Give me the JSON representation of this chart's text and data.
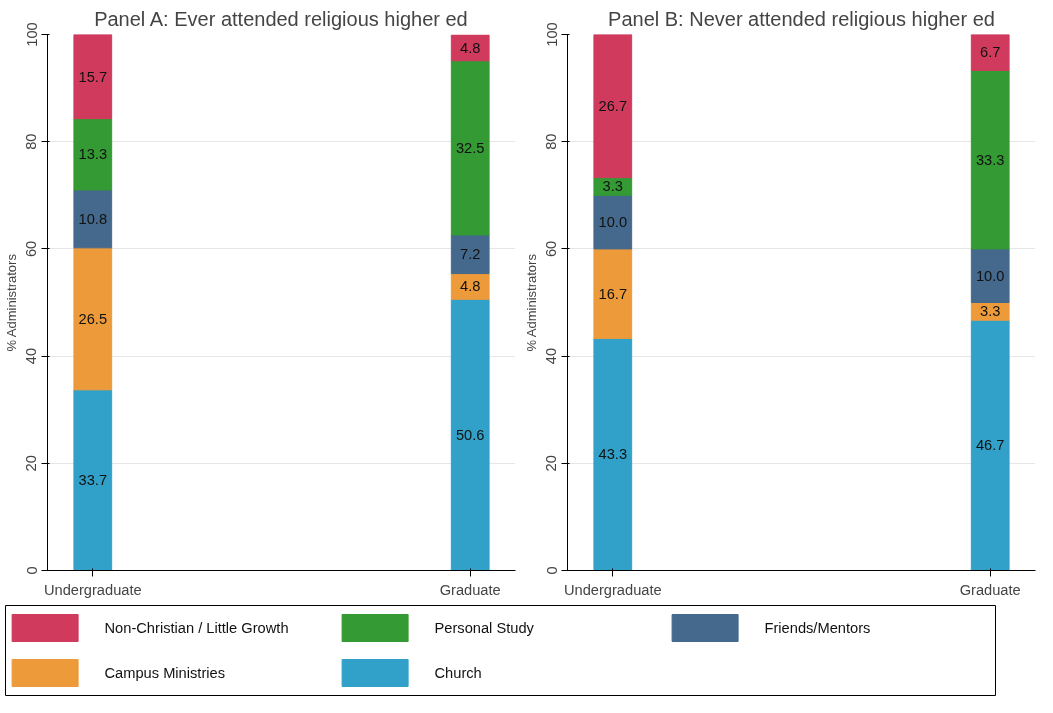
{
  "chart_data": [
    {
      "type": "bar",
      "stacked": true,
      "title": "Panel A: Ever attended religious higher ed",
      "ylabel": "% Administrators",
      "categories": [
        "Undergraduate",
        "Graduate"
      ],
      "ylim": [
        0,
        100
      ],
      "yticks": [
        0,
        20,
        40,
        60,
        80,
        100
      ],
      "grid": "y",
      "legend": "bottom",
      "series": [
        {
          "name": "Church",
          "color": "#31a1c9",
          "values": [
            33.7,
            50.6
          ],
          "value_labels": [
            "33.7",
            "50.6"
          ]
        },
        {
          "name": "Campus Ministries",
          "color": "#ec9a3a",
          "values": [
            26.5,
            4.8
          ],
          "value_labels": [
            "26.5",
            "4.8"
          ]
        },
        {
          "name": "Friends/Mentors",
          "color": "#45698c",
          "values": [
            10.8,
            7.2
          ],
          "value_labels": [
            "10.8",
            "7.2"
          ]
        },
        {
          "name": "Personal Study",
          "color": "#349a34",
          "values": [
            13.3,
            32.5
          ],
          "value_labels": [
            "13.3",
            "32.5"
          ]
        },
        {
          "name": "Non-Christian / Little Growth",
          "color": "#d03a5c",
          "values": [
            15.7,
            4.8
          ],
          "value_labels": [
            "15.7",
            "4.8"
          ]
        }
      ]
    },
    {
      "type": "bar",
      "stacked": true,
      "title": "Panel B: Never attended religious higher ed",
      "ylabel": "% Administrators",
      "categories": [
        "Undergraduate",
        "Graduate"
      ],
      "ylim": [
        0,
        100
      ],
      "yticks": [
        0,
        20,
        40,
        60,
        80,
        100
      ],
      "grid": "y",
      "series": [
        {
          "color": "#31a1c9",
          "values": [
            43.3,
            46.7
          ],
          "value_labels": [
            "43.3",
            "46.7"
          ]
        },
        {
          "color": "#ec9a3a",
          "values": [
            16.7,
            3.3
          ],
          "value_labels": [
            "16.7",
            "3.3"
          ]
        },
        {
          "color": "#45698c",
          "values": [
            10.0,
            10.0
          ],
          "value_labels": [
            "10.0",
            "10.0"
          ]
        },
        {
          "color": "#349a34",
          "values": [
            3.3,
            33.3
          ],
          "value_labels": [
            "3.3",
            "33.3"
          ]
        },
        {
          "color": "#d03a5c",
          "values": [
            26.7,
            6.7
          ],
          "value_labels": [
            "26.7",
            "6.7"
          ]
        }
      ]
    }
  ]
}
